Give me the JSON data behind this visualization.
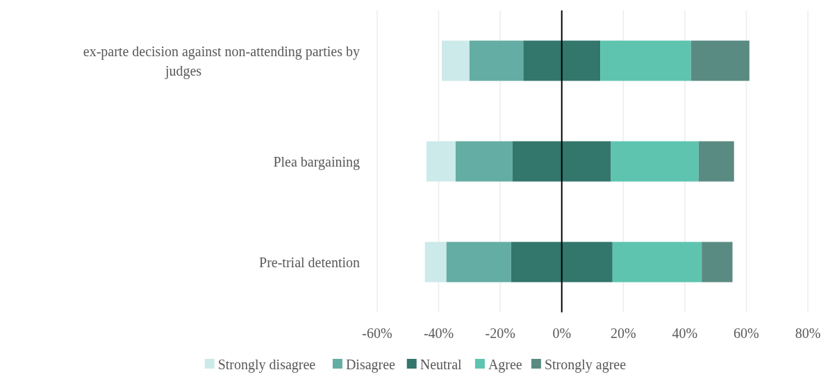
{
  "chart_data": {
    "type": "bar",
    "orientation": "horizontal",
    "categories": [
      "ex-parte decision against non-attending parties by judges",
      "Plea bargaining",
      "Pre-trial detention"
    ],
    "series": [
      {
        "name": "Strongly disagree",
        "color": "#cdeaea",
        "base": [
          -39,
          -44,
          -44.5
        ],
        "values": [
          9,
          9.5,
          7
        ]
      },
      {
        "name": "Disagree",
        "color": "#64ada4",
        "base": [
          -30,
          -34.5,
          -37.5
        ],
        "values": [
          17.5,
          18.5,
          21
        ]
      },
      {
        "name": "Neutral",
        "color": "#32766c",
        "base": [
          -12.5,
          -16,
          -16.5
        ],
        "values": [
          25,
          32,
          33
        ]
      },
      {
        "name": "Agree",
        "color": "#5ec4b0",
        "base": [
          12.5,
          16,
          16.5
        ],
        "values": [
          29.5,
          28.5,
          29
        ]
      },
      {
        "name": "Strongly agree",
        "color": "#5a8b82",
        "base": [
          42,
          44.5,
          45.5
        ],
        "values": [
          19,
          11.5,
          10
        ]
      }
    ],
    "xlim": [
      -60,
      80
    ],
    "xticks": [
      {
        "value": -60,
        "label": "-60%"
      },
      {
        "value": -40,
        "label": "-40%"
      },
      {
        "value": -20,
        "label": "-20%"
      },
      {
        "value": 0,
        "label": "0%"
      },
      {
        "value": 20,
        "label": "20%"
      },
      {
        "value": 40,
        "label": "40%"
      },
      {
        "value": 60,
        "label": "60%"
      },
      {
        "value": 80,
        "label": "80%"
      }
    ],
    "grid": "x",
    "legend": "bottom",
    "ref_lines": [
      {
        "axis": "x",
        "value": 0,
        "color": "#000000"
      }
    ]
  }
}
